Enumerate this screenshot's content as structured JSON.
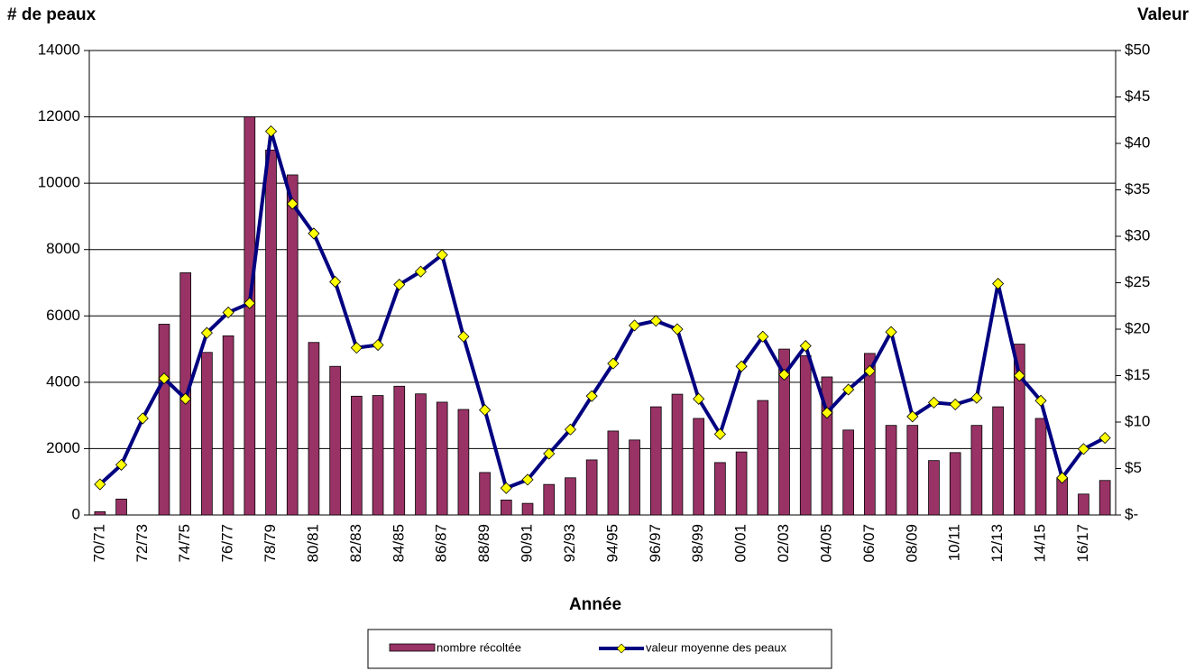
{
  "chart_data": {
    "type": "combo",
    "y_label": "# de peaux",
    "y2_label": "Valeur",
    "x_label": "Année",
    "categories": [
      "70/71",
      null,
      "72/73",
      null,
      "74/75",
      null,
      "76/77",
      null,
      "78/79",
      null,
      "80/81",
      null,
      "82/83",
      null,
      "84/85",
      null,
      "86/87",
      null,
      "88/89",
      null,
      "90/91",
      null,
      "92/93",
      null,
      "94/95",
      null,
      "96/97",
      null,
      "98/99",
      null,
      "00/01",
      null,
      "02/03",
      null,
      "04/05",
      null,
      "06/07",
      null,
      "08/09",
      null,
      "10/11",
      null,
      "12/13",
      null,
      "14/15",
      null,
      "16/17",
      null
    ],
    "series": [
      {
        "name": "nombre récoltée",
        "type": "bar",
        "color": "#993366",
        "values": [
          100,
          480,
          0,
          5750,
          7300,
          4900,
          5400,
          12000,
          11000,
          10250,
          5200,
          4480,
          3580,
          3600,
          3880,
          3650,
          3400,
          3180,
          1280,
          450,
          350,
          920,
          1120,
          1660,
          2530,
          2260,
          3260,
          3640,
          2910,
          1580,
          1900,
          3450,
          5000,
          4800,
          4160,
          2560,
          4870,
          2700,
          2700,
          1640,
          1880,
          2700,
          3260,
          5150,
          2910,
          1100,
          630,
          1040
        ]
      },
      {
        "name": "valeur moyenne des peaux",
        "type": "line",
        "axis": "y2",
        "color": "#000080",
        "marker_color": "#ffff00",
        "values": [
          3.3,
          5.4,
          10.4,
          14.7,
          12.5,
          19.6,
          21.8,
          22.8,
          41.3,
          33.5,
          30.3,
          25.1,
          18.0,
          18.3,
          24.8,
          26.2,
          28.0,
          19.2,
          11.3,
          2.9,
          3.8,
          6.6,
          9.2,
          12.8,
          16.3,
          20.4,
          20.9,
          20.0,
          12.5,
          8.7,
          16.0,
          19.2,
          15.1,
          18.2,
          11.0,
          13.5,
          15.5,
          19.7,
          10.6,
          12.1,
          11.9,
          12.6,
          24.9,
          15.0,
          12.3,
          4.0,
          7.1,
          8.3
        ]
      }
    ],
    "ylim": [
      0,
      14000
    ],
    "yticks": [
      0,
      2000,
      4000,
      6000,
      8000,
      10000,
      12000,
      14000
    ],
    "y2lim": [
      0,
      50
    ],
    "y2ticks": [
      {
        "value": 0,
        "label": "$-"
      },
      {
        "value": 5,
        "label": "$5"
      },
      {
        "value": 10,
        "label": "$10"
      },
      {
        "value": 15,
        "label": "$15"
      },
      {
        "value": 20,
        "label": "$20"
      },
      {
        "value": 25,
        "label": "$25"
      },
      {
        "value": 30,
        "label": "$30"
      },
      {
        "value": 35,
        "label": "$35"
      },
      {
        "value": 40,
        "label": "$40"
      },
      {
        "value": 45,
        "label": "$45"
      },
      {
        "value": 50,
        "label": "$50"
      }
    ],
    "grid": true,
    "legend": "bottom"
  }
}
